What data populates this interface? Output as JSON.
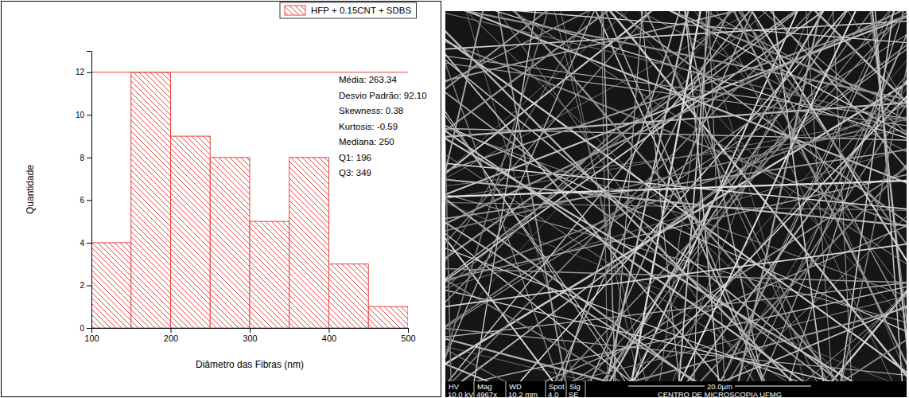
{
  "chart_data": {
    "type": "histogram",
    "name": "HFP + 0.15CNT + SDBS",
    "x_label": "Diâmetro das Fibras (nm)",
    "y_label": "Quantidade",
    "bins": [
      100,
      150,
      200,
      250,
      300,
      350,
      400,
      450,
      500
    ],
    "counts": [
      4,
      12,
      9,
      8,
      5,
      8,
      3,
      1
    ],
    "color": "#e8423f",
    "xlim": [
      100,
      500
    ],
    "xticks": [
      100,
      200,
      300,
      400,
      500
    ],
    "ylim": [
      0,
      13
    ],
    "yticks": [
      0,
      2,
      4,
      6,
      8,
      10,
      12
    ],
    "hline": 12,
    "legend": "top-right",
    "annotations": [
      "Média: 263.34",
      "Desvio Padrão: 92.10",
      "Skewness: 0.38",
      "Kurtosis: -0.59",
      "Mediana: 250",
      "Q1: 196",
      "Q3: 349"
    ]
  },
  "image": {
    "type": "micrograph",
    "info_headers": [
      "HV",
      "Mag",
      "WD",
      "Spot",
      "Sig"
    ],
    "info_values": [
      "10.0 kV",
      "4967x",
      "10.2 mm",
      "4.0",
      "SE"
    ],
    "scale_bar": "20.0µm",
    "institution": "CENTRO DE MICROSCOPIA UFMG"
  }
}
